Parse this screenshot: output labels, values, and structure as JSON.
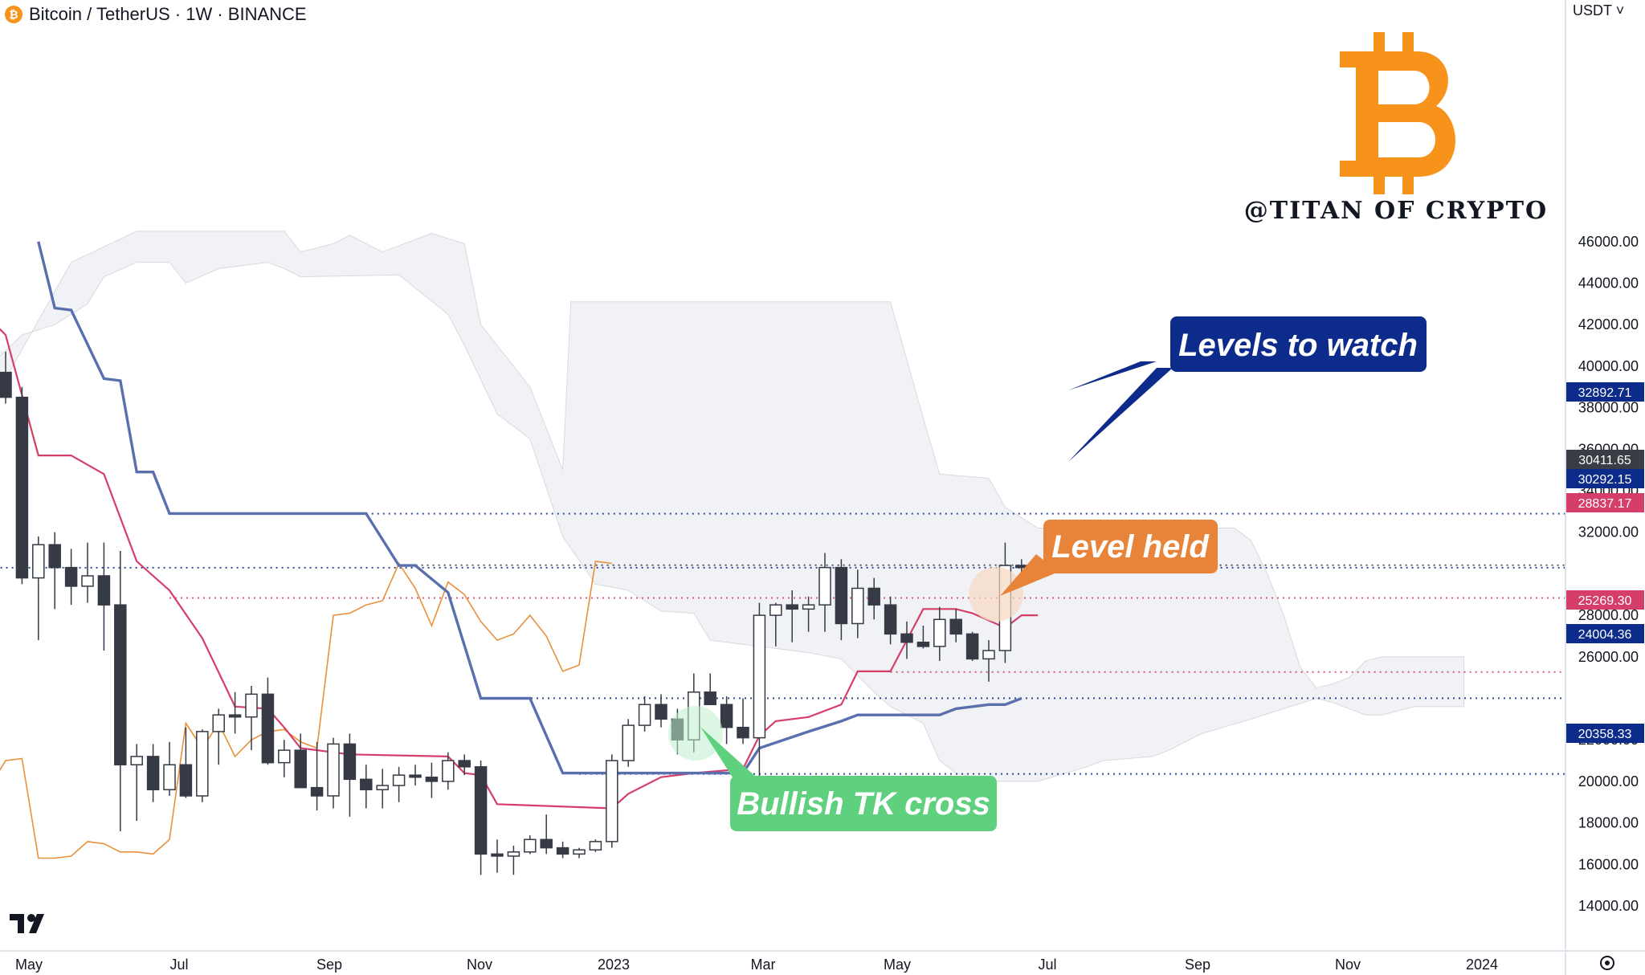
{
  "header": {
    "title": "Bitcoin / TetherUS · 1W · BINANCE",
    "coin_icon": "bitcoin-icon"
  },
  "price_axis": {
    "currency": "USDT",
    "labels": [
      "46000.00",
      "44000.00",
      "42000.00",
      "40000.00",
      "38000.00",
      "36000.00",
      "34000.00",
      "32000.00",
      "28000.00",
      "26000.00",
      "22000.00",
      "20000.00",
      "18000.00",
      "16000.00",
      "14000.00"
    ]
  },
  "time_axis": {
    "labels": [
      {
        "text": "May",
        "bold": false
      },
      {
        "text": "Jul",
        "bold": false
      },
      {
        "text": "Sep",
        "bold": false
      },
      {
        "text": "Nov",
        "bold": false
      },
      {
        "text": "2023",
        "bold": true
      },
      {
        "text": "Mar",
        "bold": false
      },
      {
        "text": "May",
        "bold": false
      },
      {
        "text": "Jul",
        "bold": false
      },
      {
        "text": "Sep",
        "bold": false
      },
      {
        "text": "Nov",
        "bold": false
      },
      {
        "text": "2024",
        "bold": true
      }
    ]
  },
  "branding": {
    "watermark": "@TITAN OF CRYPTO",
    "logo": "bitcoin-logo",
    "tradingview": "tradingview-logo"
  },
  "colors": {
    "tenkan": "#d63e6a",
    "kijun": "#5a6fae",
    "chikou": "#e8913a",
    "cloud": "#eceef2",
    "candle_up": "#ffffff",
    "candle_down": "#363a45",
    "navy": "#0d2b8a",
    "orange": "#e8843a",
    "green": "#5fd07d"
  },
  "chart_data": {
    "type": "candlestick",
    "title": "Bitcoin / TetherUS · 1W · BINANCE",
    "x_axis": [
      "May",
      "Jul",
      "Sep",
      "Nov",
      "2023",
      "Mar",
      "May",
      "Jul",
      "Sep",
      "Nov",
      "2024"
    ],
    "y_range": [
      13000,
      46500
    ],
    "candles": [
      [
        0,
        39700,
        40700,
        38200,
        38500
      ],
      [
        1,
        38500,
        39000,
        29500,
        29800
      ],
      [
        2,
        29800,
        31800,
        26800,
        31400
      ],
      [
        3,
        31400,
        32000,
        28300,
        30300
      ],
      [
        4,
        30300,
        31200,
        28500,
        29400
      ],
      [
        5,
        29400,
        31500,
        28600,
        29900
      ],
      [
        6,
        29900,
        31500,
        26300,
        28500
      ],
      [
        7,
        28500,
        31100,
        17600,
        20800
      ],
      [
        8,
        20800,
        21800,
        18100,
        21200
      ],
      [
        9,
        21200,
        21800,
        19000,
        19600
      ],
      [
        10,
        19600,
        21900,
        19300,
        20800
      ],
      [
        11,
        20800,
        22600,
        19200,
        19300
      ],
      [
        12,
        19300,
        22500,
        19000,
        22400
      ],
      [
        13,
        22400,
        23500,
        20800,
        23200
      ],
      [
        14,
        23200,
        24300,
        22300,
        23100
      ],
      [
        15,
        23100,
        24600,
        21500,
        24200
      ],
      [
        16,
        24200,
        25000,
        20800,
        20900
      ],
      [
        17,
        20900,
        22000,
        20200,
        21500
      ],
      [
        18,
        21500,
        22300,
        19700,
        19700
      ],
      [
        19,
        19700,
        21900,
        18600,
        19300
      ],
      [
        20,
        19300,
        22100,
        18700,
        21800
      ],
      [
        21,
        21800,
        22300,
        18300,
        20100
      ],
      [
        22,
        20100,
        20800,
        18700,
        19600
      ],
      [
        23,
        19600,
        20600,
        18700,
        19800
      ],
      [
        24,
        19800,
        20700,
        19000,
        20300
      ],
      [
        25,
        20300,
        20800,
        19800,
        20200
      ],
      [
        26,
        20200,
        20900,
        19200,
        20000
      ],
      [
        27,
        20000,
        21400,
        19600,
        21000
      ],
      [
        28,
        21000,
        21300,
        20300,
        20700
      ],
      [
        29,
        20700,
        21000,
        15500,
        16500
      ],
      [
        30,
        16500,
        17200,
        15600,
        16400
      ],
      [
        31,
        16400,
        16900,
        15500,
        16600
      ],
      [
        32,
        16600,
        17400,
        16500,
        17200
      ],
      [
        33,
        17200,
        18400,
        16500,
        16800
      ],
      [
        34,
        16800,
        17100,
        16300,
        16500
      ],
      [
        35,
        16500,
        16800,
        16300,
        16700
      ],
      [
        36,
        16700,
        17200,
        16600,
        17100
      ],
      [
        37,
        17100,
        21300,
        16800,
        21000
      ],
      [
        38,
        21000,
        23000,
        20700,
        22700
      ],
      [
        39,
        22700,
        24100,
        22400,
        23700
      ],
      [
        40,
        23700,
        24200,
        22600,
        23000
      ],
      [
        41,
        23000,
        23500,
        21300,
        22000
      ],
      [
        42,
        22000,
        25200,
        21400,
        24300
      ],
      [
        43,
        24300,
        25200,
        23800,
        23700
      ],
      [
        44,
        23700,
        24100,
        21800,
        22600
      ],
      [
        45,
        22600,
        24000,
        21800,
        22100
      ],
      [
        46,
        22100,
        28600,
        19500,
        28000
      ],
      [
        47,
        28000,
        28600,
        26500,
        28500
      ],
      [
        48,
        28500,
        29200,
        26700,
        28300
      ],
      [
        49,
        28300,
        28900,
        27200,
        28500
      ],
      [
        50,
        28500,
        31000,
        27200,
        30300
      ],
      [
        51,
        30300,
        30700,
        26800,
        27600
      ],
      [
        52,
        27600,
        30200,
        26900,
        29300
      ],
      [
        53,
        29300,
        29800,
        27800,
        28500
      ],
      [
        54,
        28500,
        28900,
        26600,
        27100
      ],
      [
        55,
        27100,
        27700,
        25900,
        26700
      ],
      [
        56,
        26700,
        27500,
        26400,
        26500
      ],
      [
        57,
        26500,
        28400,
        25800,
        27800
      ],
      [
        58,
        27800,
        28300,
        26700,
        27100
      ],
      [
        59,
        27100,
        27200,
        25800,
        25900
      ],
      [
        60,
        25900,
        26800,
        24800,
        26300
      ],
      [
        61,
        26300,
        31500,
        25700,
        30400
      ],
      [
        62,
        30400,
        30700,
        30000,
        30300
      ]
    ],
    "tenkan": [
      [
        -1,
        42300
      ],
      [
        0,
        41500
      ],
      [
        2,
        35700
      ],
      [
        4,
        35700
      ],
      [
        6,
        34800
      ],
      [
        8,
        30600
      ],
      [
        10,
        29200
      ],
      [
        12,
        26900
      ],
      [
        14,
        23600
      ],
      [
        16,
        23500
      ],
      [
        17,
        22600
      ],
      [
        18,
        21600
      ],
      [
        20,
        21400
      ],
      [
        21,
        21300
      ],
      [
        27,
        21200
      ],
      [
        28,
        20400
      ],
      [
        29,
        20300
      ],
      [
        30,
        18900
      ],
      [
        37,
        18700
      ],
      [
        38,
        19400
      ],
      [
        40,
        20200
      ],
      [
        42,
        20400
      ],
      [
        45,
        20600
      ],
      [
        46,
        22200
      ],
      [
        47,
        22900
      ],
      [
        49,
        23100
      ],
      [
        51,
        23700
      ],
      [
        52,
        25300
      ],
      [
        54,
        25300
      ],
      [
        56,
        28300
      ],
      [
        58,
        28300
      ],
      [
        59,
        28100
      ],
      [
        61,
        27400
      ],
      [
        62,
        28000
      ],
      [
        63,
        28000
      ]
    ],
    "kijun": [
      [
        2,
        46000
      ],
      [
        3,
        42800
      ],
      [
        4,
        42700
      ],
      [
        6,
        39400
      ],
      [
        7,
        39300
      ],
      [
        8,
        34900
      ],
      [
        9,
        34900
      ],
      [
        10,
        32900
      ],
      [
        22,
        32900
      ],
      [
        24,
        30400
      ],
      [
        25,
        30400
      ],
      [
        27,
        29100
      ],
      [
        29,
        24000
      ],
      [
        32,
        24000
      ],
      [
        34,
        20400
      ],
      [
        45,
        20400
      ],
      [
        46,
        21600
      ],
      [
        49,
        22400
      ],
      [
        51,
        22900
      ],
      [
        52,
        23200
      ],
      [
        57,
        23200
      ],
      [
        58,
        23500
      ],
      [
        60,
        23700
      ],
      [
        61,
        23700
      ],
      [
        62,
        24000
      ]
    ],
    "chikou": [
      [
        -1,
        19700
      ],
      [
        0,
        21000
      ],
      [
        1,
        21100
      ],
      [
        2,
        16300
      ],
      [
        3,
        16300
      ],
      [
        4,
        16400
      ],
      [
        5,
        17100
      ],
      [
        6,
        17000
      ],
      [
        7,
        16600
      ],
      [
        8,
        16600
      ],
      [
        9,
        16500
      ],
      [
        10,
        17200
      ],
      [
        11,
        22800
      ],
      [
        12,
        21600
      ],
      [
        13,
        22800
      ],
      [
        14,
        21200
      ],
      [
        15,
        22000
      ],
      [
        16,
        22400
      ],
      [
        17,
        22500
      ],
      [
        18,
        21900
      ],
      [
        19,
        21600
      ],
      [
        20,
        28000
      ],
      [
        21,
        28100
      ],
      [
        22,
        28500
      ],
      [
        23,
        28700
      ],
      [
        24,
        30500
      ],
      [
        25,
        29300
      ],
      [
        26,
        27500
      ],
      [
        27,
        29600
      ],
      [
        28,
        29000
      ],
      [
        29,
        27700
      ],
      [
        30,
        26800
      ],
      [
        31,
        27100
      ],
      [
        32,
        28000
      ],
      [
        33,
        27000
      ],
      [
        34,
        25300
      ],
      [
        35,
        25600
      ],
      [
        36,
        30600
      ],
      [
        37,
        30500
      ]
    ],
    "cloud_top": [
      [
        -1,
        38000
      ],
      [
        4,
        45000
      ],
      [
        8,
        46500
      ],
      [
        17,
        46500
      ],
      [
        18,
        45500
      ],
      [
        20,
        45900
      ],
      [
        21,
        46300
      ],
      [
        23,
        45500
      ],
      [
        26,
        46400
      ],
      [
        28,
        45900
      ],
      [
        29,
        42000
      ],
      [
        32,
        39000
      ],
      [
        34,
        35000
      ],
      [
        34.5,
        43100
      ],
      [
        54,
        43100
      ],
      [
        55,
        40300
      ],
      [
        56,
        37500
      ],
      [
        57,
        34800
      ],
      [
        60,
        34600
      ],
      [
        61,
        33200
      ],
      [
        63,
        32200
      ],
      [
        75,
        32200
      ],
      [
        76,
        31600
      ],
      [
        77,
        30000
      ],
      [
        78,
        28000
      ],
      [
        79,
        25500
      ],
      [
        80,
        24500
      ],
      [
        81,
        24700
      ],
      [
        82,
        25000
      ],
      [
        83,
        25800
      ],
      [
        84,
        26000
      ],
      [
        89,
        26000
      ]
    ],
    "cloud_bottom": [
      [
        -1,
        40000
      ],
      [
        1,
        41500
      ],
      [
        3,
        42000
      ],
      [
        5,
        43000
      ],
      [
        6,
        44300
      ],
      [
        8,
        45000
      ],
      [
        10,
        45000
      ],
      [
        11,
        44000
      ],
      [
        13,
        44700
      ],
      [
        16,
        45000
      ],
      [
        17,
        44700
      ],
      [
        18,
        44300
      ],
      [
        24,
        44400
      ],
      [
        27,
        42500
      ],
      [
        28,
        41000
      ],
      [
        30,
        37700
      ],
      [
        32,
        36500
      ],
      [
        34,
        31800
      ],
      [
        36,
        29500
      ],
      [
        38,
        29200
      ],
      [
        40,
        28200
      ],
      [
        42,
        28100
      ],
      [
        43,
        26800
      ],
      [
        45,
        26600
      ],
      [
        49,
        26200
      ],
      [
        51,
        25900
      ],
      [
        53,
        24300
      ],
      [
        54,
        23600
      ],
      [
        56,
        22800
      ],
      [
        57,
        21000
      ],
      [
        58,
        20400
      ],
      [
        60,
        20000
      ],
      [
        63,
        20000
      ],
      [
        66,
        20700
      ],
      [
        67,
        21000
      ],
      [
        70,
        21200
      ],
      [
        71,
        21500
      ],
      [
        73,
        22300
      ],
      [
        76,
        23000
      ],
      [
        78,
        23500
      ],
      [
        80,
        24000
      ],
      [
        81,
        23800
      ],
      [
        83,
        23200
      ],
      [
        84,
        23200
      ],
      [
        86,
        23600
      ],
      [
        89,
        23600
      ]
    ],
    "levels": [
      {
        "value": 32892.71,
        "label": "32892.71",
        "color": "#0d2b8a",
        "from": 22
      },
      {
        "value": 30411.65,
        "label": "30411.65",
        "color": "#3a3d44",
        "from": 24
      },
      {
        "value": 30292.15,
        "label": "30292.15",
        "color": "#0d2b8a",
        "from": -1
      },
      {
        "value": 28837.17,
        "label": "28837.17",
        "color": "#d63e6a",
        "from": 10
      },
      {
        "value": 25269.3,
        "label": "25269.30",
        "color": "#d63e6a",
        "from": 54
      },
      {
        "value": 24004.36,
        "label": "24004.36",
        "color": "#0d2b8a",
        "from": 30
      },
      {
        "value": 20358.33,
        "label": "20358.33",
        "color": "#0d2b8a",
        "from": 35
      }
    ],
    "annotations": [
      {
        "text": "Levels to watch",
        "color": "#0d2b8a"
      },
      {
        "text": "Level held",
        "color": "#e8843a"
      },
      {
        "text": "Bullish TK cross",
        "color": "#5fd07d"
      }
    ]
  }
}
